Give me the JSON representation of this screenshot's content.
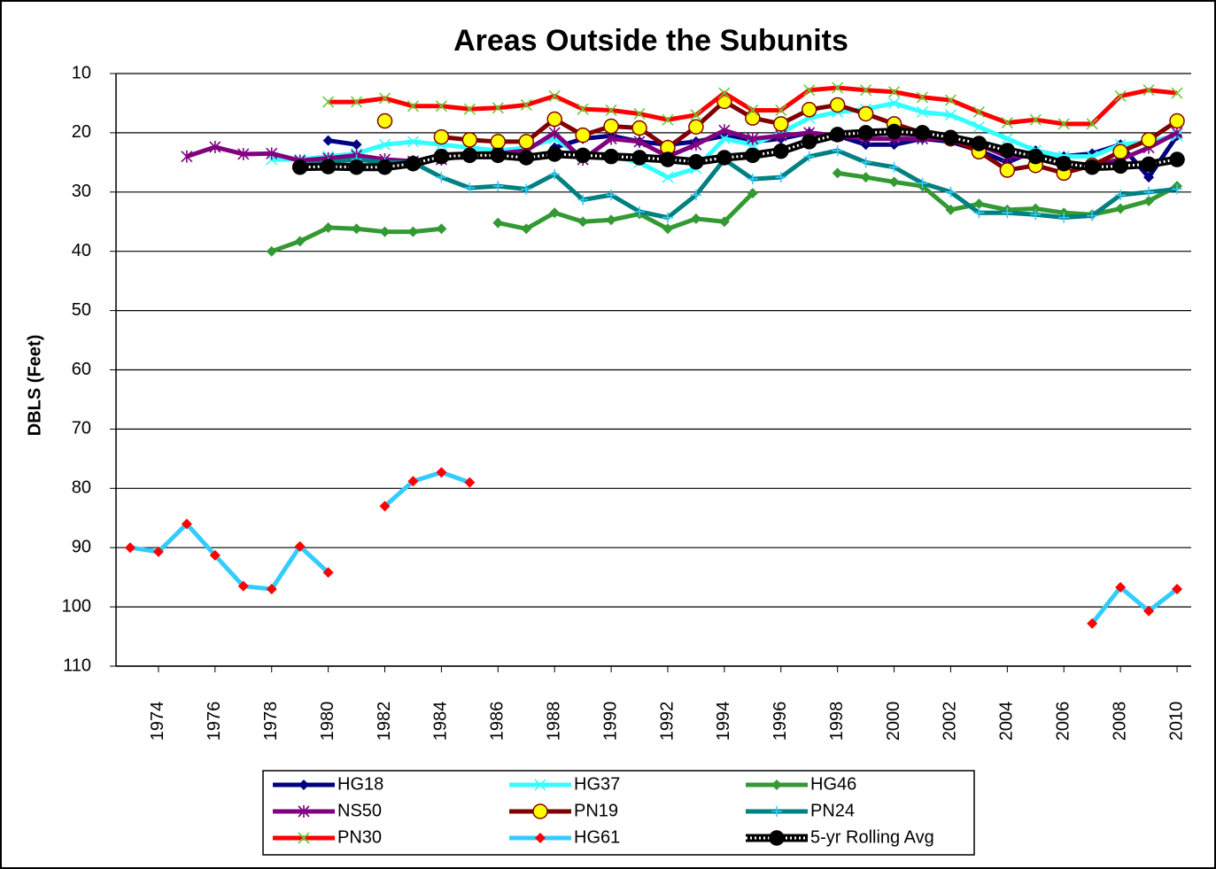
{
  "chart_data": {
    "type": "line",
    "title": "Areas Outside the Subunits",
    "y_label": "DBLS (Feet)",
    "x": [
      1973,
      1974,
      1975,
      1976,
      1977,
      1978,
      1979,
      1980,
      1981,
      1982,
      1983,
      1984,
      1985,
      1986,
      1987,
      1988,
      1989,
      1990,
      1991,
      1992,
      1993,
      1994,
      1995,
      1996,
      1997,
      1998,
      1999,
      2000,
      2001,
      2002,
      2003,
      2004,
      2005,
      2006,
      2007,
      2008,
      2009,
      2010
    ],
    "xlim": [
      1972.5,
      2010.5
    ],
    "xticks": [
      1974,
      1976,
      1978,
      1980,
      1982,
      1984,
      1986,
      1988,
      1990,
      1992,
      1994,
      1996,
      1998,
      2000,
      2002,
      2004,
      2006,
      2008,
      2010
    ],
    "ylim": [
      10,
      110
    ],
    "y_reversed": true,
    "yticks": [
      10,
      20,
      30,
      40,
      50,
      60,
      70,
      80,
      90,
      100,
      110
    ],
    "grid": true,
    "legend": "bottom",
    "series": [
      {
        "name": "HG18",
        "color": "#000080",
        "marker": "diamond",
        "marker_color": "#000080",
        "values": [
          null,
          null,
          null,
          null,
          null,
          null,
          null,
          21.3,
          22,
          null,
          null,
          null,
          null,
          null,
          null,
          22.5,
          21,
          20.5,
          21.5,
          22,
          21.5,
          20.5,
          21.5,
          21,
          20,
          20.5,
          22,
          22,
          21,
          21.5,
          23,
          25,
          23,
          24,
          23.5,
          22,
          27.5,
          20.5
        ]
      },
      {
        "name": "HG37",
        "color": "#33ffff",
        "marker": "x",
        "marker_color": "#33ffff",
        "values": [
          null,
          null,
          null,
          null,
          null,
          24.5,
          24.5,
          24,
          23.5,
          22,
          21.5,
          22,
          22.5,
          23,
          22.5,
          21,
          24,
          24,
          25,
          27.5,
          26,
          21,
          22,
          20,
          17.5,
          16.5,
          16,
          15,
          16.5,
          17,
          19,
          21,
          23,
          24,
          24,
          22,
          21.5,
          20.5
        ]
      },
      {
        "name": "HG46",
        "color": "#339933",
        "marker": "diamond",
        "marker_color": "#339933",
        "values": [
          null,
          null,
          null,
          null,
          null,
          40,
          38.3,
          36,
          36.2,
          36.7,
          36.7,
          36.2,
          null,
          35.2,
          36.2,
          33.5,
          35,
          34.7,
          33.7,
          36.2,
          34.5,
          35,
          30.2,
          null,
          null,
          26.8,
          27.5,
          28.3,
          29,
          33,
          32,
          33,
          32.8,
          33.5,
          33.8,
          32.8,
          31.5,
          29
        ]
      },
      {
        "name": "NS50",
        "color": "#800080",
        "marker": "star",
        "marker_color": "#800080",
        "values": [
          null,
          null,
          24,
          22.4,
          23.6,
          23.5,
          24.7,
          24.3,
          23.8,
          24.5,
          24.8,
          24.5,
          23.8,
          23.5,
          23,
          20,
          24.5,
          21,
          21.5,
          24,
          22,
          19.6,
          21,
          20.5,
          20,
          20.5,
          21,
          21,
          21,
          21,
          22,
          24,
          24,
          25,
          25.5,
          24.5,
          22.5,
          20
        ]
      },
      {
        "name": "PN19",
        "color": "#800000",
        "marker": "circle",
        "marker_color": "#ffff00",
        "values": [
          null,
          null,
          null,
          null,
          null,
          null,
          null,
          null,
          null,
          18,
          null,
          20.7,
          21.2,
          21.5,
          21.5,
          17.7,
          20.4,
          18.9,
          19.2,
          22.5,
          19,
          14.7,
          17.5,
          18.5,
          16.1,
          15.3,
          16.8,
          18.5,
          20,
          21,
          23.2,
          26.3,
          25.5,
          26.8,
          25.5,
          23.2,
          21.2,
          18
        ]
      },
      {
        "name": "PN24",
        "color": "#008080",
        "marker": "plus",
        "marker_color": "#33ccff",
        "values": [
          null,
          null,
          null,
          null,
          null,
          null,
          25.5,
          25,
          24.5,
          25,
          25,
          27.5,
          29.3,
          29,
          29.5,
          27,
          31.3,
          30.5,
          33.3,
          34.3,
          30.5,
          24.5,
          27.8,
          27.5,
          24,
          23,
          25,
          25.8,
          28.5,
          30,
          33.5,
          33.5,
          33.8,
          34.3,
          34,
          30.5,
          30,
          29.5
        ]
      },
      {
        "name": "PN30",
        "color": "#ff0000",
        "marker": "x",
        "marker_color": "#66cc33",
        "values": [
          null,
          null,
          null,
          null,
          null,
          null,
          null,
          14.8,
          14.8,
          14.2,
          15.5,
          15.5,
          16,
          15.8,
          15.3,
          13.8,
          16,
          16.2,
          16.8,
          17.8,
          17,
          13.3,
          16.2,
          16.2,
          12.8,
          12.4,
          12.8,
          13.1,
          14,
          14.5,
          16.5,
          18.3,
          17.8,
          18.5,
          18.5,
          13.8,
          12.8,
          13.3
        ]
      },
      {
        "name": "HG61",
        "color": "#33ccff",
        "marker": "diamond",
        "marker_color": "#ff0000",
        "values": [
          90,
          90.7,
          86,
          91.3,
          96.5,
          97,
          89.8,
          94.2,
          null,
          83,
          78.8,
          77.3,
          79,
          null,
          null,
          null,
          null,
          null,
          null,
          null,
          null,
          null,
          null,
          null,
          null,
          null,
          null,
          null,
          null,
          null,
          null,
          null,
          null,
          null,
          102.8,
          96.7,
          100.7,
          97
        ]
      },
      {
        "name": "5-yr Rolling Avg",
        "color": "#000000",
        "marker": "circle",
        "marker_color": "#000000",
        "line_style": "dotted",
        "values": [
          null,
          null,
          null,
          null,
          null,
          null,
          25.8,
          25.7,
          25.8,
          25.8,
          25.2,
          24,
          23.8,
          23.8,
          24.2,
          23.6,
          23.8,
          24,
          24.2,
          24.5,
          24.9,
          24.2,
          23.8,
          23.1,
          21.5,
          20.3,
          20,
          19.8,
          20,
          20.8,
          21.8,
          23,
          24,
          25.2,
          25.8,
          25.6,
          25.3,
          24.5
        ]
      }
    ]
  }
}
